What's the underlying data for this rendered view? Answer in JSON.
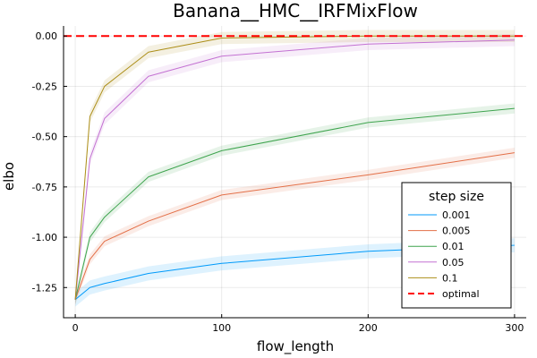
{
  "chart_data": {
    "type": "line",
    "title": "Banana__HMC__IRFMixFlow",
    "xlabel": "flow_length",
    "ylabel": "elbo",
    "xlim": [
      -8,
      308
    ],
    "ylim": [
      -1.4,
      0.05
    ],
    "xticks": [
      0,
      100,
      200,
      300
    ],
    "xtick_labels": [
      "0",
      "100",
      "200",
      "300"
    ],
    "yticks": [
      0.0,
      -0.25,
      -0.5,
      -0.75,
      -1.0,
      -1.25
    ],
    "ytick_labels": [
      "0.00",
      "-0.25",
      "-0.50",
      "-0.75",
      "-1.00",
      "-1.25"
    ],
    "grid": true,
    "legend": {
      "title": "step size",
      "position": "bottom-right"
    },
    "x": [
      0,
      10,
      20,
      50,
      100,
      200,
      300
    ],
    "series": [
      {
        "name": "0.001",
        "color": "#009AFA",
        "values": [
          -1.31,
          -1.25,
          -1.23,
          -1.18,
          -1.13,
          -1.07,
          -1.04
        ],
        "band": 0.035
      },
      {
        "name": "0.005",
        "color": "#E36F47",
        "values": [
          -1.31,
          -1.11,
          -1.02,
          -0.92,
          -0.79,
          -0.69,
          -0.58
        ],
        "band": 0.025
      },
      {
        "name": "0.01",
        "color": "#3EA44E",
        "values": [
          -1.31,
          -1.0,
          -0.9,
          -0.7,
          -0.57,
          -0.43,
          -0.36
        ],
        "band": 0.025
      },
      {
        "name": "0.05",
        "color": "#C371D2",
        "values": [
          -1.31,
          -0.61,
          -0.41,
          -0.2,
          -0.1,
          -0.04,
          -0.02
        ],
        "band": 0.03
      },
      {
        "name": "0.1",
        "color": "#AC8E18",
        "values": [
          -1.31,
          -0.4,
          -0.25,
          -0.08,
          -0.01,
          0.0,
          0.0
        ],
        "band": 0.03
      }
    ],
    "reference_line": {
      "name": "optimal",
      "value": 0.0,
      "color": "#FF0000",
      "style": "dashed"
    }
  }
}
